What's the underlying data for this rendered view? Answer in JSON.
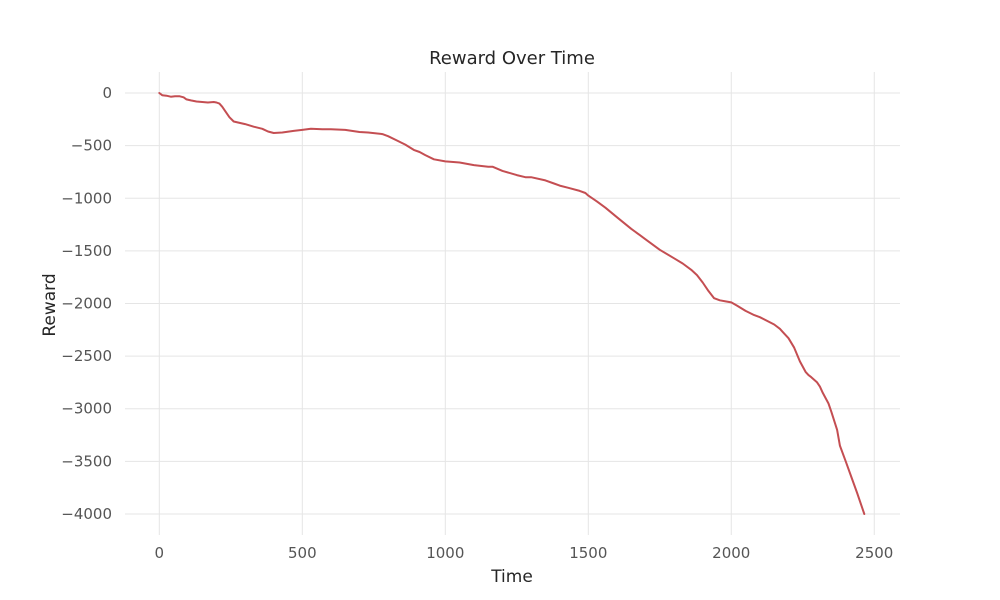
{
  "chart_data": {
    "type": "line",
    "title": "Reward Over Time",
    "xlabel": "Time",
    "ylabel": "Reward",
    "xlim": [
      -120,
      2590
    ],
    "ylim": [
      -4200,
      200
    ],
    "xticks": [
      0,
      500,
      1000,
      1500,
      2000,
      2500
    ],
    "xtick_labels": [
      "0",
      "500",
      "1000",
      "1500",
      "2000",
      "2500"
    ],
    "yticks": [
      0,
      -500,
      -1000,
      -1500,
      -2000,
      -2500,
      -3000,
      -3500,
      -4000
    ],
    "ytick_labels": [
      "0",
      "−500",
      "−1000",
      "−1500",
      "−2000",
      "−2500",
      "−3000",
      "−3500",
      "−4000"
    ],
    "grid": true,
    "colors": {
      "line": "#c44e52",
      "grid": "#e5e5e5",
      "text": "#262626",
      "tick_text": "#555555"
    },
    "series": [
      {
        "x": [
          0,
          10,
          25,
          40,
          55,
          70,
          85,
          95,
          110,
          130,
          150,
          170,
          190,
          200,
          210,
          220,
          230,
          245,
          260,
          275,
          300,
          330,
          360,
          380,
          400,
          430,
          470,
          500,
          530,
          570,
          600,
          650,
          700,
          730,
          780,
          800,
          830,
          860,
          890,
          910,
          930,
          960,
          1000,
          1050,
          1100,
          1150,
          1165,
          1200,
          1250,
          1280,
          1300,
          1350,
          1380,
          1400,
          1430,
          1470,
          1490,
          1500,
          1530,
          1560,
          1600,
          1650,
          1680,
          1700,
          1750,
          1800,
          1830,
          1860,
          1880,
          1900,
          1920,
          1940,
          1960,
          1980,
          2000,
          2020,
          2050,
          2080,
          2100,
          2150,
          2170,
          2180,
          2200,
          2220,
          2240,
          2260,
          2270,
          2280,
          2300,
          2310,
          2320,
          2340,
          2350,
          2370,
          2380,
          2400,
          2420,
          2440,
          2465
        ],
        "y": [
          0,
          -20,
          -25,
          -35,
          -30,
          -30,
          -40,
          -60,
          -70,
          -80,
          -85,
          -90,
          -85,
          -90,
          -100,
          -130,
          -170,
          -230,
          -270,
          -280,
          -295,
          -320,
          -340,
          -365,
          -380,
          -375,
          -360,
          -350,
          -340,
          -345,
          -345,
          -350,
          -370,
          -375,
          -390,
          -410,
          -450,
          -490,
          -540,
          -560,
          -590,
          -630,
          -650,
          -660,
          -685,
          -700,
          -700,
          -740,
          -780,
          -800,
          -800,
          -830,
          -860,
          -880,
          -900,
          -930,
          -950,
          -975,
          -1030,
          -1090,
          -1180,
          -1290,
          -1350,
          -1390,
          -1490,
          -1570,
          -1620,
          -1680,
          -1730,
          -1800,
          -1880,
          -1950,
          -1970,
          -1980,
          -1990,
          -2020,
          -2070,
          -2110,
          -2130,
          -2200,
          -2240,
          -2270,
          -2330,
          -2420,
          -2550,
          -2650,
          -2680,
          -2700,
          -2750,
          -2790,
          -2850,
          -2950,
          -3030,
          -3200,
          -3350,
          -3500,
          -3650,
          -3800,
          -4000
        ]
      }
    ]
  }
}
